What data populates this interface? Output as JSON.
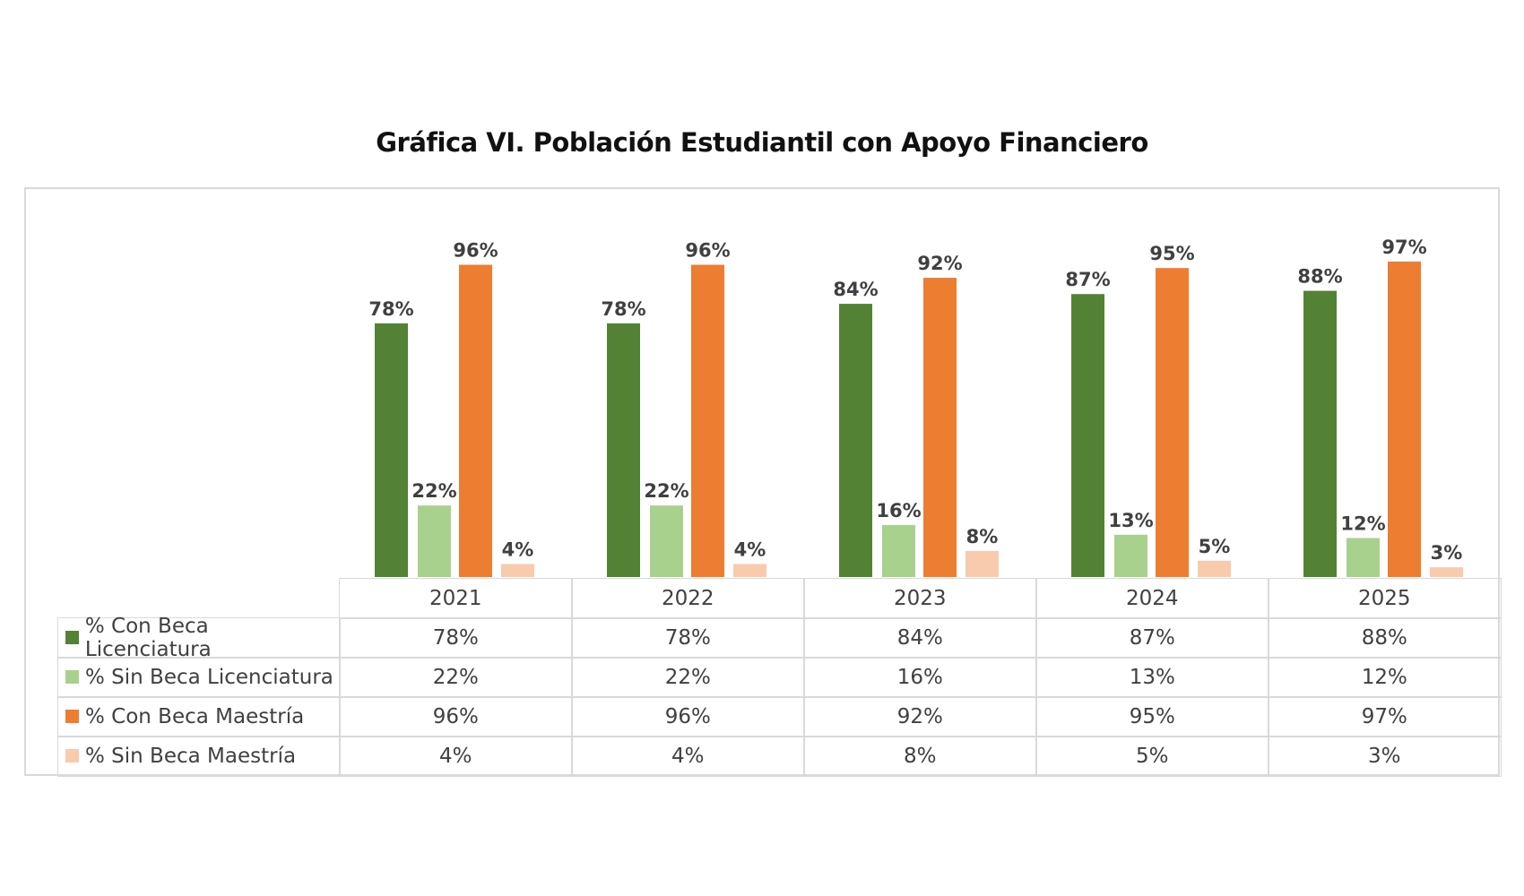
{
  "chart_data": {
    "type": "bar",
    "title": "Gráfica VI. Población Estudiantil con Apoyo Financiero",
    "categories": [
      "2021",
      "2022",
      "2023",
      "2024",
      "2025"
    ],
    "series": [
      {
        "name": "% Con Beca Licenciatura",
        "color": "#548235",
        "values": [
          78,
          78,
          84,
          87,
          88
        ],
        "labels": [
          "78%",
          "78%",
          "84%",
          "87%",
          "88%"
        ]
      },
      {
        "name": "% Sin Beca Licenciatura",
        "color": "#a9d18e",
        "values": [
          22,
          22,
          16,
          13,
          12
        ],
        "labels": [
          "22%",
          "22%",
          "16%",
          "13%",
          "12%"
        ]
      },
      {
        "name": "% Con Beca Maestría",
        "color": "#ed7d31",
        "values": [
          96,
          96,
          92,
          95,
          97
        ],
        "labels": [
          "96%",
          "96%",
          "92%",
          "95%",
          "97%"
        ]
      },
      {
        "name": "% Sin Beca Maestría",
        "color": "#f8cbad",
        "values": [
          4,
          4,
          8,
          5,
          3
        ],
        "labels": [
          "4%",
          "4%",
          "8%",
          "5%",
          "3%"
        ]
      }
    ],
    "ylim": [
      0,
      100
    ],
    "grid": false,
    "legend": "data-table-below"
  }
}
